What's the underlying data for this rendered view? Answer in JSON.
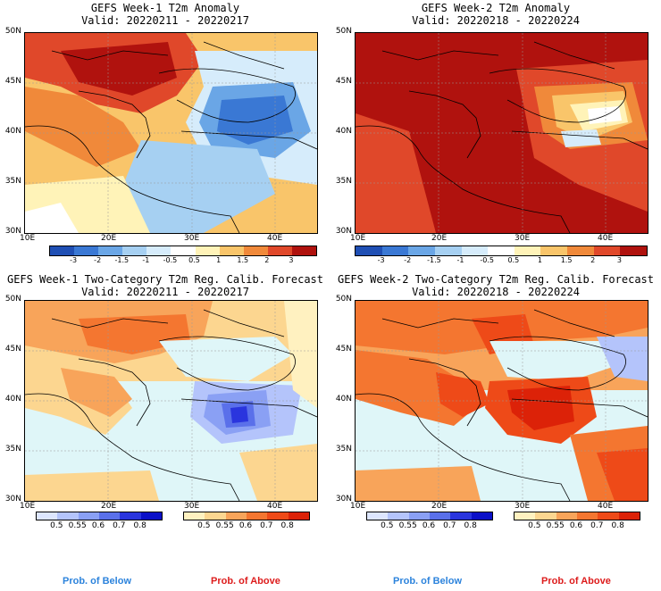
{
  "panels": [
    {
      "title": "GEFS Week-1 T2m Anomaly",
      "valid": "Valid: 20220211 - 20220217",
      "kind": "anomaly",
      "theme": "w1a"
    },
    {
      "title": "GEFS Week-2 T2m Anomaly",
      "valid": "Valid: 20220218 - 20220224",
      "kind": "anomaly",
      "theme": "w2a"
    },
    {
      "title": "GEFS Week-1 Two-Category T2m Reg. Calib. Forecast",
      "valid": "Valid: 20220211 - 20220217",
      "kind": "prob",
      "theme": "w1p"
    },
    {
      "title": "GEFS Week-2 Two-Category T2m Reg. Calib. Forecast",
      "valid": "Valid: 20220218 - 20220224",
      "kind": "prob",
      "theme": "w2p"
    }
  ],
  "lat_labels": [
    "50N",
    "45N",
    "40N",
    "35N",
    "30N"
  ],
  "lon_labels": [
    "10E",
    "20E",
    "30E",
    "40E"
  ],
  "anomaly_colorbar": {
    "ticks": [
      "-3",
      "-2",
      "-1.5",
      "-1",
      "-0.5",
      "0.5",
      "1",
      "1.5",
      "2",
      "3"
    ],
    "colors": [
      "#1f4fb4",
      "#3a78d4",
      "#6aa6e6",
      "#a6d0f2",
      "#d6ecfb",
      "#ffffff",
      "#fff3b8",
      "#f9c56a",
      "#f0893a",
      "#e0482a",
      "#b0120e"
    ]
  },
  "below_colorbar": {
    "ticks": [
      "0.5",
      "0.55",
      "0.6",
      "0.7",
      "0.8"
    ],
    "colors": [
      "#dde6ff",
      "#b4c4fb",
      "#8aa0f4",
      "#5a70ea",
      "#2a35de",
      "#0b10c8"
    ]
  },
  "above_colorbar": {
    "ticks": [
      "0.5",
      "0.55",
      "0.6",
      "0.7",
      "0.8"
    ],
    "colors": [
      "#fff1c0",
      "#fcd690",
      "#f8a45a",
      "#f47630",
      "#ee4a18",
      "#dc2208"
    ]
  },
  "footer": {
    "below": "Prob. of Below",
    "above": "Prob. of Above",
    "below_color": "#2c83dc",
    "above_color": "#dd1c1c"
  }
}
